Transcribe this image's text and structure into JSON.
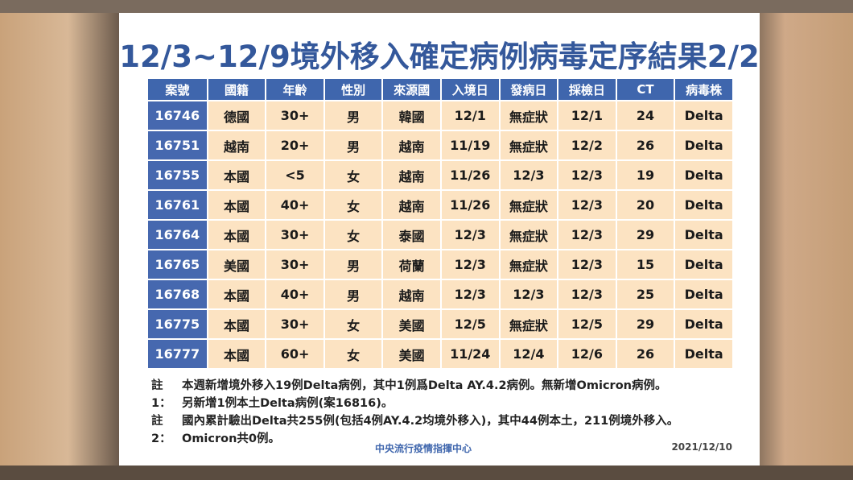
{
  "title": "12/3~12/9境外移入確定病例病毒定序結果2/2",
  "table": {
    "headers": [
      "案號",
      "國籍",
      "年齡",
      "性別",
      "來源國",
      "入境日",
      "發病日",
      "採檢日",
      "CT",
      "病毒株"
    ],
    "rows": [
      [
        "16746",
        "德國",
        "30+",
        "男",
        "韓國",
        "12/1",
        "無症狀",
        "12/1",
        "24",
        "Delta"
      ],
      [
        "16751",
        "越南",
        "20+",
        "男",
        "越南",
        "11/19",
        "無症狀",
        "12/2",
        "26",
        "Delta"
      ],
      [
        "16755",
        "本國",
        "<5",
        "女",
        "越南",
        "11/26",
        "12/3",
        "12/3",
        "19",
        "Delta"
      ],
      [
        "16761",
        "本國",
        "40+",
        "女",
        "越南",
        "11/26",
        "無症狀",
        "12/3",
        "20",
        "Delta"
      ],
      [
        "16764",
        "本國",
        "30+",
        "女",
        "泰國",
        "12/3",
        "無症狀",
        "12/3",
        "29",
        "Delta"
      ],
      [
        "16765",
        "美國",
        "30+",
        "男",
        "荷蘭",
        "12/3",
        "無症狀",
        "12/3",
        "15",
        "Delta"
      ],
      [
        "16768",
        "本國",
        "40+",
        "男",
        "越南",
        "12/3",
        "12/3",
        "12/3",
        "25",
        "Delta"
      ],
      [
        "16775",
        "本國",
        "30+",
        "女",
        "美國",
        "12/5",
        "無症狀",
        "12/5",
        "29",
        "Delta"
      ],
      [
        "16777",
        "本國",
        "60+",
        "女",
        "美國",
        "11/24",
        "12/4",
        "12/6",
        "26",
        "Delta"
      ]
    ]
  },
  "notes": [
    {
      "label": "註1：",
      "lines": [
        "本週新增境外移入19例Delta病例，其中1例爲Delta AY.4.2病例。無新增Omicron病例。",
        "另新增1例本土Delta病例(案16816)。"
      ]
    },
    {
      "label": "註2：",
      "lines": [
        "國內累計驗出Delta共255例(包括4例AY.4.2均境外移入)，其中44例本土，211例境外移入。",
        "Omicron共0例。"
      ]
    }
  ],
  "footer": {
    "organization": "中央流行疫情指揮中心",
    "date": "2021/12/10"
  }
}
